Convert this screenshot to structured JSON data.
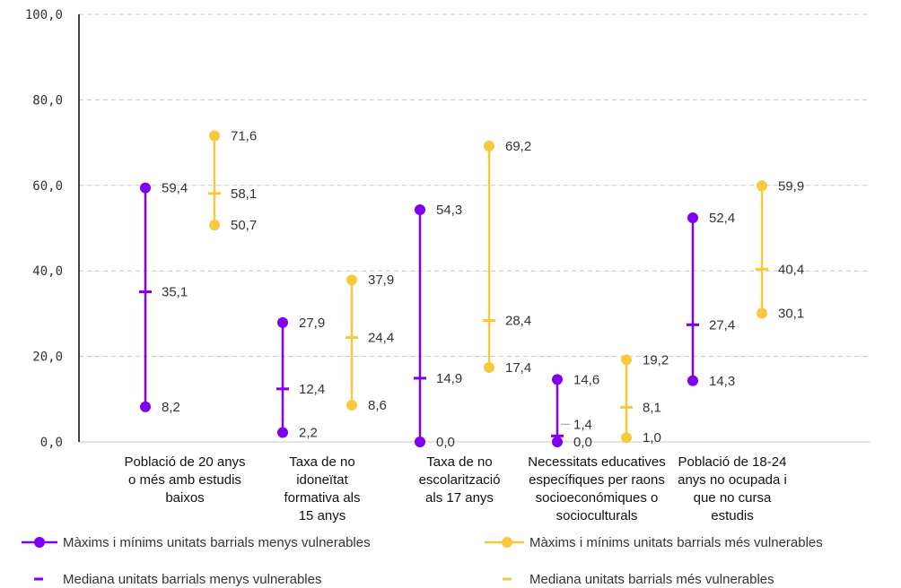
{
  "chart_data": {
    "type": "range",
    "ylim": [
      0,
      100
    ],
    "yticks": [
      "0,0",
      "20,0",
      "40,0",
      "60,0",
      "80,0",
      "100,0"
    ],
    "grid": true,
    "legend_position": "bottom",
    "categories": [
      [
        "Població de 20 anys",
        "o més amb estudis",
        "baixos"
      ],
      [
        "Taxa de no",
        "idoneïtat",
        "formativa als",
        "15 anys"
      ],
      [
        "Taxa de no",
        "escolarització",
        "als 17 anys"
      ],
      [
        "Necessitats educatives",
        "específiques per raons",
        "socioeconómiques o",
        "socioculturals"
      ],
      [
        "Població de 18-24",
        "anys no ocupada i",
        "que no cursa",
        "estudis"
      ]
    ],
    "series": [
      {
        "name": "Màxims i mínims unitats barrials menys vulnerables",
        "median_name": "Mediana unitats barrials menys vulnerables",
        "color": "#7f00f0",
        "max": [
          59.4,
          27.9,
          54.3,
          14.6,
          52.4
        ],
        "min": [
          8.2,
          2.2,
          0.0,
          0.0,
          14.3
        ],
        "median": [
          35.1,
          12.4,
          14.9,
          1.4,
          27.4
        ],
        "max_labels": [
          "59,4",
          "27,9",
          "54,3",
          "14,6",
          "52,4"
        ],
        "min_labels": [
          "8,2",
          "2,2",
          "0,0",
          "0,0",
          "14,3"
        ],
        "median_labels": [
          "35,1",
          "12,4",
          "14,9",
          "1,4",
          "27,4"
        ]
      },
      {
        "name": "Màxims i mínims unitats barrials més vulnerables",
        "median_name": "Mediana unitats barrials més vulnerables",
        "color": "#f8c93c",
        "max": [
          71.6,
          37.9,
          69.2,
          19.2,
          59.9
        ],
        "min": [
          50.7,
          8.6,
          17.4,
          1.0,
          30.1
        ],
        "median": [
          58.1,
          24.4,
          28.4,
          8.1,
          40.4
        ],
        "max_labels": [
          "71,6",
          "37,9",
          "69,2",
          "19,2",
          "59,9"
        ],
        "min_labels": [
          "50,7",
          "8,6",
          "17,4",
          "1,0",
          "30,1"
        ],
        "median_labels": [
          "58,1",
          "24,4",
          "28,4",
          "8,1",
          "40,4"
        ]
      }
    ]
  }
}
